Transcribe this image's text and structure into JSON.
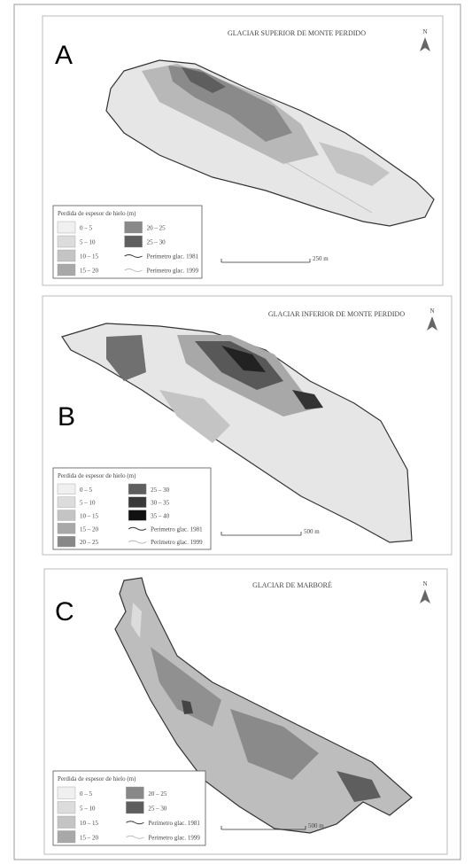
{
  "panels": [
    {
      "letter": "A",
      "title": "GLACIAR SUPERIOR DE MONTE PERDIDO",
      "north": "N",
      "scale": "250 m",
      "legend": {
        "title": "Perdida de espesor de hielo (m)",
        "classes": [
          {
            "label": "0 – 5",
            "color": "#f0f0f0"
          },
          {
            "label": "5 – 10",
            "color": "#dcdcdc"
          },
          {
            "label": "10 – 15",
            "color": "#c4c4c4"
          },
          {
            "label": "15 – 20",
            "color": "#a8a8a8"
          },
          {
            "label": "20 – 25",
            "color": "#888888"
          },
          {
            "label": "25 – 30",
            "color": "#5e5e5e"
          }
        ],
        "lines": [
          {
            "label": "Perímetro glac. 1981",
            "color": "#333333"
          },
          {
            "label": "Perímetro glac. 1999",
            "color": "#bbbbbb"
          }
        ]
      }
    },
    {
      "letter": "B",
      "title": "GLACIAR INFERIOR DE MONTE PERDIDO",
      "north": "N",
      "scale": "500 m",
      "legend": {
        "title": "Perdida de espesor de hielo (m)",
        "classes": [
          {
            "label": "0 – 5",
            "color": "#f0f0f0"
          },
          {
            "label": "5 – 10",
            "color": "#dcdcdc"
          },
          {
            "label": "10 – 15",
            "color": "#c4c4c4"
          },
          {
            "label": "15 – 20",
            "color": "#a8a8a8"
          },
          {
            "label": "20 – 25",
            "color": "#888888"
          },
          {
            "label": "25 – 30",
            "color": "#5e5e5e"
          },
          {
            "label": "30 – 35",
            "color": "#383838"
          },
          {
            "label": "35 – 40",
            "color": "#111111"
          }
        ],
        "lines": [
          {
            "label": "Perímetro glac. 1981",
            "color": "#333333"
          },
          {
            "label": "Perímetro glac. 1999",
            "color": "#bbbbbb"
          }
        ]
      }
    },
    {
      "letter": "C",
      "title": "GLACIAR DE MARBORÉ",
      "north": "N",
      "scale": "500 m",
      "legend": {
        "title": "Perdida de espesor de hielo (m)",
        "classes": [
          {
            "label": "0 – 5",
            "color": "#f0f0f0"
          },
          {
            "label": "5 – 10",
            "color": "#dcdcdc"
          },
          {
            "label": "10 – 15",
            "color": "#c4c4c4"
          },
          {
            "label": "15 – 20",
            "color": "#a8a8a8"
          },
          {
            "label": "20 – 25",
            "color": "#888888"
          },
          {
            "label": "25 – 30",
            "color": "#5e5e5e"
          }
        ],
        "lines": [
          {
            "label": "Perímetro glac. 1981",
            "color": "#333333"
          },
          {
            "label": "Perímetro glac. 1999",
            "color": "#bbbbbb"
          }
        ]
      }
    }
  ]
}
